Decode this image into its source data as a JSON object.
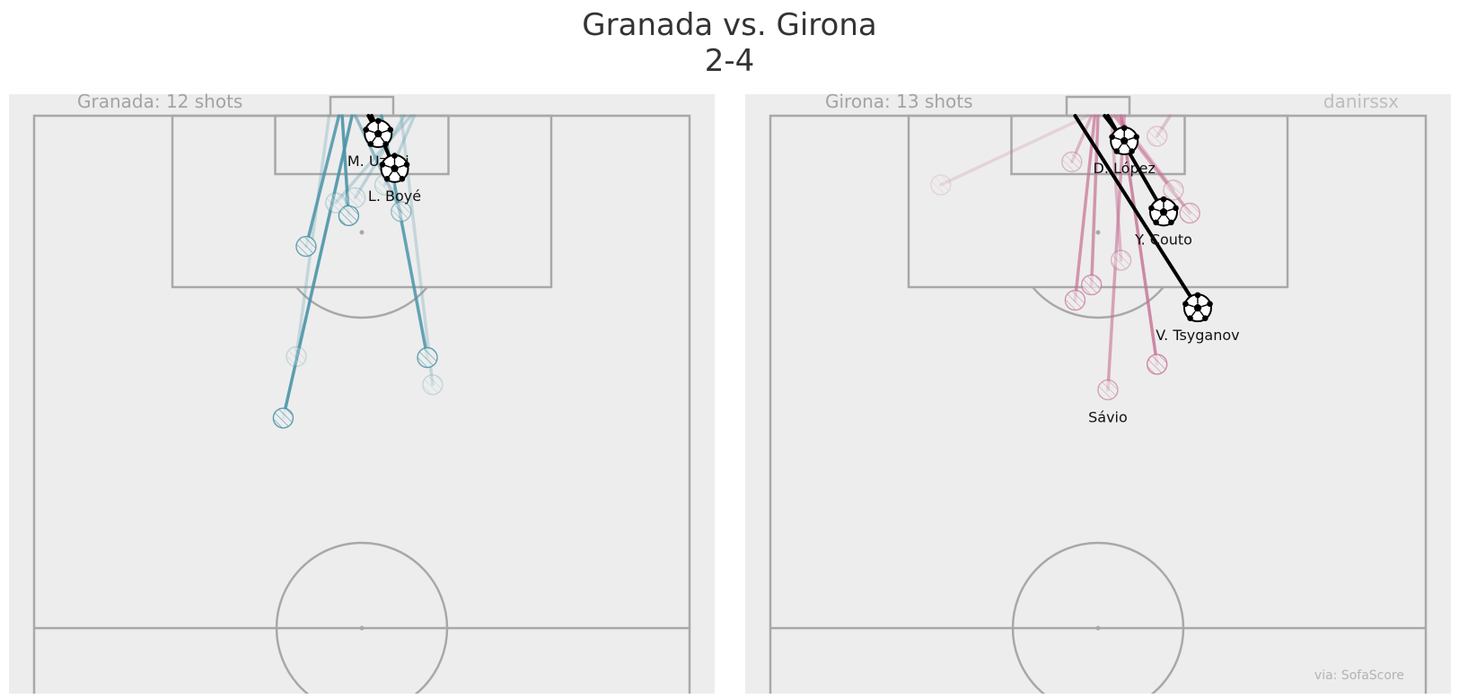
{
  "title": {
    "line1": "Granada vs. Girona",
    "line2": "2-4"
  },
  "credit": "danirssx",
  "source": "via: SofaScore",
  "colors": {
    "background": "#ededed",
    "lines": "#a8a8a8",
    "home": "#4a94a8",
    "away": "#c46f92",
    "goal": "#000000"
  },
  "chart_data": [
    {
      "type": "scatter",
      "team": "Granada",
      "label": "Granada: 12 shots",
      "shots_count": 12,
      "units": "pitch % (x: 0=left touchline, 100=right touchline; y: 0=goal line, 100=halfway line)",
      "xlim": [
        0,
        100
      ],
      "ylim": [
        0,
        100
      ],
      "shots": [
        {
          "x": 52.5,
          "y": 3.5,
          "ex": 51.0,
          "ey": 0,
          "goal": true,
          "player": "M. Uzuni"
        },
        {
          "x": 55.0,
          "y": 10.3,
          "ex": 51.5,
          "ey": 0,
          "goal": true,
          "player": "L. Boyé"
        },
        {
          "x": 48.0,
          "y": 19.5,
          "ex": 47.0,
          "ey": 0,
          "goal": false,
          "alpha": 0.9
        },
        {
          "x": 41.5,
          "y": 25.5,
          "ex": 46.5,
          "ey": 0,
          "goal": false,
          "alpha": 0.85
        },
        {
          "x": 56.0,
          "y": 18.7,
          "ex": 49.0,
          "ey": 0,
          "goal": false,
          "alpha": 0.55
        },
        {
          "x": 60.0,
          "y": 47.2,
          "ex": 53.0,
          "ey": 0,
          "goal": false,
          "alpha": 0.85
        },
        {
          "x": 38.0,
          "y": 59.0,
          "ex": 48.5,
          "ey": 0,
          "goal": false,
          "alpha": 0.9
        },
        {
          "x": 40.0,
          "y": 47.0,
          "ex": 45.0,
          "ey": 0,
          "goal": false,
          "alpha": 0.25
        },
        {
          "x": 60.8,
          "y": 52.5,
          "ex": 56.0,
          "ey": 0,
          "goal": false,
          "alpha": 0.25
        },
        {
          "x": 46.0,
          "y": 17.0,
          "ex": 57.5,
          "ey": 0,
          "goal": false,
          "alpha": 0.3
        },
        {
          "x": 53.5,
          "y": 13.5,
          "ex": 58.0,
          "ey": 0,
          "goal": false,
          "alpha": 0.3
        },
        {
          "x": 49.0,
          "y": 16.0,
          "ex": 56.5,
          "ey": 0,
          "goal": false,
          "alpha": 0.3
        }
      ]
    },
    {
      "type": "scatter",
      "team": "Girona",
      "label": "Girona: 13 shots",
      "shots_count": 13,
      "units": "pitch % (x: 0=left touchline, 100=right touchline; y: 0=goal line, 100=halfway line)",
      "xlim": [
        0,
        100
      ],
      "ylim": [
        0,
        100
      ],
      "shots": [
        {
          "x": 54.0,
          "y": 4.9,
          "ex": 51.0,
          "ey": 0,
          "goal": true,
          "player": "D. López"
        },
        {
          "x": 60.0,
          "y": 18.8,
          "ex": 51.5,
          "ey": 0,
          "goal": true,
          "player": "Y. Couto"
        },
        {
          "x": 65.2,
          "y": 37.5,
          "ex": 46.5,
          "ey": 0,
          "goal": true,
          "player": "V. Tsyganov"
        },
        {
          "x": 51.5,
          "y": 53.5,
          "ex": 54.0,
          "ey": 0,
          "goal": false,
          "player": "Sávio"
        },
        {
          "x": 46.0,
          "y": 9.0,
          "ex": 49.0,
          "ey": 0,
          "goal": false,
          "alpha": 0.45
        },
        {
          "x": 26.0,
          "y": 13.5,
          "ex": 48.5,
          "ey": 0,
          "goal": false,
          "alpha": 0.2
        },
        {
          "x": 61.5,
          "y": 14.5,
          "ex": 53.0,
          "ey": 0,
          "goal": false,
          "alpha": 0.45
        },
        {
          "x": 64.0,
          "y": 19.0,
          "ex": 52.5,
          "ey": 0,
          "goal": false,
          "alpha": 0.6
        },
        {
          "x": 53.5,
          "y": 28.2,
          "ex": 52.0,
          "ey": 0,
          "goal": false,
          "alpha": 0.45
        },
        {
          "x": 49.0,
          "y": 33.0,
          "ex": 50.0,
          "ey": 0,
          "goal": false,
          "alpha": 0.7
        },
        {
          "x": 46.5,
          "y": 36.0,
          "ex": 49.5,
          "ey": 0,
          "goal": false,
          "alpha": 0.7
        },
        {
          "x": 59.0,
          "y": 48.5,
          "ex": 53.5,
          "ey": 0,
          "goal": false,
          "alpha": 0.8
        },
        {
          "x": 59.0,
          "y": 4.0,
          "ex": 61.0,
          "ey": 0,
          "goal": false,
          "alpha": 0.35
        }
      ]
    }
  ]
}
